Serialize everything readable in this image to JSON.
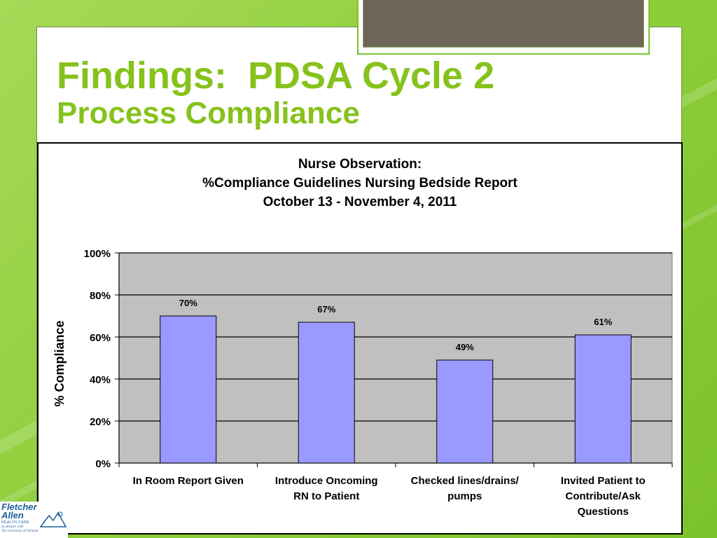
{
  "slide": {
    "title_line1": "Findings:  PDSA Cycle 2",
    "title_line2": "Process Compliance"
  },
  "logo": {
    "brand_line1": "Fletcher",
    "brand_line2": "Allen",
    "sub": "HEALTH CARE",
    "tag_line1": "In alliance with",
    "tag_line2": "The University of Vermont"
  },
  "colors": {
    "accent": "#86c21c",
    "bar_fill": "#9999ff",
    "plot_bg": "#c0c0c0"
  },
  "chart_data": {
    "type": "bar",
    "title_lines": [
      "Nurse Observation:",
      "%Compliance Guidelines Nursing Bedside Report",
      "October 13 - November 4, 2011"
    ],
    "ylabel": "% Compliance",
    "xlabel": "",
    "ylim": [
      0,
      100
    ],
    "y_ticks": [
      "0%",
      "20%",
      "40%",
      "60%",
      "80%",
      "100%"
    ],
    "categories": [
      [
        "In Room Report Given"
      ],
      [
        "Introduce Oncoming",
        "RN to Patient"
      ],
      [
        "Checked lines/drains/",
        "pumps"
      ],
      [
        "Invited Patient to",
        "Contribute/Ask",
        "Questions"
      ]
    ],
    "values": [
      70,
      67,
      49,
      61
    ],
    "data_labels": [
      "70%",
      "67%",
      "49%",
      "61%"
    ],
    "grid": true,
    "legend": "none"
  }
}
